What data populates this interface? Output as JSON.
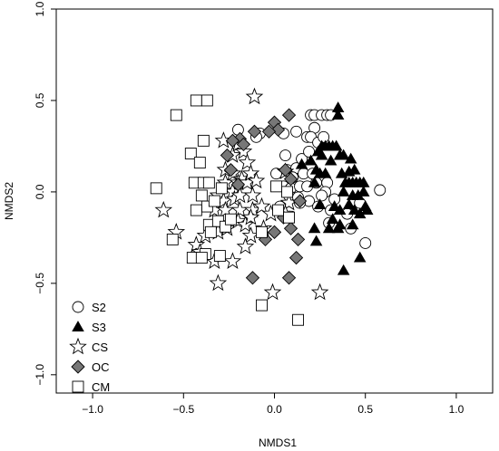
{
  "chart_data": {
    "type": "scatter",
    "title": "",
    "xlabel": "NMDS1",
    "ylabel": "NMDS2",
    "xlim": [
      -1.2,
      1.2
    ],
    "ylim": [
      -1.1,
      1.0
    ],
    "x_ticks": [
      -1.0,
      -0.5,
      0.0,
      0.5,
      1.0
    ],
    "y_ticks": [
      -1.0,
      -0.5,
      0.0,
      0.5,
      1.0
    ],
    "x_tick_labels": [
      "−1.0",
      "−0.5",
      "0.0",
      "0.5",
      "1.0"
    ],
    "y_tick_labels": [
      "−1.0",
      "−0.5",
      "0.0",
      "0.5",
      "1.0"
    ],
    "grid": false,
    "legend_position": "bottom-left",
    "series": [
      {
        "name": "S2",
        "marker": "circle-open",
        "color": "#000000",
        "points": [
          [
            0.2,
            0.42
          ],
          [
            0.22,
            0.42
          ],
          [
            0.26,
            0.42
          ],
          [
            0.29,
            0.42
          ],
          [
            0.31,
            0.42
          ],
          [
            0.22,
            0.35
          ],
          [
            0.12,
            0.33
          ],
          [
            0.18,
            0.3
          ],
          [
            0.2,
            0.3
          ],
          [
            0.24,
            0.27
          ],
          [
            0.27,
            0.3
          ],
          [
            0.05,
            0.32
          ],
          [
            -0.08,
            0.32
          ],
          [
            -0.2,
            0.34
          ],
          [
            -0.1,
            0.3
          ],
          [
            0.06,
            0.2
          ],
          [
            0.15,
            0.18
          ],
          [
            0.19,
            0.22
          ],
          [
            0.07,
            0.12
          ],
          [
            0.12,
            0.13
          ],
          [
            0.16,
            0.1
          ],
          [
            0.1,
            0.08
          ],
          [
            0.01,
            0.1
          ],
          [
            0.05,
            0.03
          ],
          [
            0.09,
            0.02
          ],
          [
            0.14,
            0.03
          ],
          [
            0.18,
            0.03
          ],
          [
            0.23,
            0.05
          ],
          [
            0.29,
            0.05
          ],
          [
            0.28,
            0.0
          ],
          [
            0.08,
            -0.02
          ],
          [
            0.13,
            -0.03
          ],
          [
            0.19,
            -0.05
          ],
          [
            0.26,
            -0.02
          ],
          [
            0.33,
            -0.04
          ],
          [
            0.21,
            0.1
          ],
          [
            0.03,
            -0.08
          ],
          [
            0.14,
            -0.06
          ],
          [
            0.24,
            -0.08
          ],
          [
            0.31,
            -0.1
          ],
          [
            0.3,
            -0.17
          ],
          [
            0.4,
            -0.12
          ],
          [
            0.42,
            -0.2
          ],
          [
            0.47,
            -0.06
          ],
          [
            0.58,
            0.01
          ],
          [
            0.5,
            -0.28
          ]
        ]
      },
      {
        "name": "S3",
        "marker": "triangle-filled",
        "color": "#000000",
        "points": [
          [
            0.35,
            0.46
          ],
          [
            0.35,
            0.42
          ],
          [
            0.15,
            0.15
          ],
          [
            0.2,
            0.17
          ],
          [
            0.24,
            0.22
          ],
          [
            0.26,
            0.25
          ],
          [
            0.28,
            0.25
          ],
          [
            0.3,
            0.25
          ],
          [
            0.32,
            0.25
          ],
          [
            0.34,
            0.25
          ],
          [
            0.23,
            0.12
          ],
          [
            0.25,
            0.1
          ],
          [
            0.28,
            0.1
          ],
          [
            0.22,
            0.05
          ],
          [
            0.26,
            0.2
          ],
          [
            0.31,
            0.17
          ],
          [
            0.36,
            0.2
          ],
          [
            0.38,
            0.2
          ],
          [
            0.42,
            0.18
          ],
          [
            0.37,
            0.1
          ],
          [
            0.41,
            0.11
          ],
          [
            0.44,
            0.12
          ],
          [
            0.39,
            0.05
          ],
          [
            0.41,
            0.05
          ],
          [
            0.43,
            0.05
          ],
          [
            0.45,
            0.05
          ],
          [
            0.47,
            0.05
          ],
          [
            0.49,
            0.05
          ],
          [
            0.38,
            0.0
          ],
          [
            0.43,
            -0.02
          ],
          [
            0.46,
            -0.02
          ],
          [
            0.49,
            0.0
          ],
          [
            0.25,
            -0.07
          ],
          [
            0.33,
            -0.08
          ],
          [
            0.36,
            -0.1
          ],
          [
            0.41,
            -0.07
          ],
          [
            0.44,
            -0.1
          ],
          [
            0.32,
            -0.15
          ],
          [
            0.36,
            -0.18
          ],
          [
            0.43,
            -0.18
          ],
          [
            0.47,
            -0.12
          ],
          [
            0.51,
            -0.1
          ],
          [
            0.22,
            -0.2
          ],
          [
            0.3,
            -0.2
          ],
          [
            0.35,
            -0.2
          ],
          [
            0.23,
            -0.27
          ],
          [
            0.47,
            -0.36
          ],
          [
            0.38,
            -0.43
          ],
          [
            0.5,
            -0.08
          ]
        ]
      },
      {
        "name": "CS",
        "marker": "star-open",
        "color": "#000000",
        "points": [
          [
            -0.11,
            0.52
          ],
          [
            -0.28,
            0.28
          ],
          [
            -0.23,
            0.2
          ],
          [
            -0.2,
            0.26
          ],
          [
            -0.17,
            0.22
          ],
          [
            -0.15,
            0.16
          ],
          [
            -0.27,
            0.12
          ],
          [
            -0.23,
            0.1
          ],
          [
            -0.18,
            0.07
          ],
          [
            -0.27,
            0.05
          ],
          [
            -0.2,
            0.05
          ],
          [
            -0.15,
            0.05
          ],
          [
            -0.13,
            0.1
          ],
          [
            -0.23,
            0.0
          ],
          [
            -0.31,
            -0.02
          ],
          [
            -0.28,
            -0.05
          ],
          [
            -0.22,
            -0.04
          ],
          [
            -0.19,
            -0.02
          ],
          [
            -0.12,
            -0.02
          ],
          [
            -0.1,
            0.06
          ],
          [
            -0.33,
            -0.1
          ],
          [
            -0.27,
            -0.1
          ],
          [
            -0.19,
            -0.1
          ],
          [
            -0.12,
            -0.1
          ],
          [
            -0.32,
            -0.17
          ],
          [
            -0.26,
            -0.2
          ],
          [
            -0.2,
            -0.16
          ],
          [
            -0.16,
            -0.18
          ],
          [
            -0.13,
            -0.14
          ],
          [
            -0.07,
            -0.08
          ],
          [
            -0.13,
            -0.24
          ],
          [
            -0.06,
            -0.2
          ],
          [
            -0.02,
            -0.12
          ],
          [
            -0.38,
            -0.24
          ],
          [
            -0.31,
            -0.22
          ],
          [
            -0.61,
            -0.1
          ],
          [
            -0.54,
            -0.22
          ],
          [
            -0.43,
            -0.29
          ],
          [
            -0.41,
            -0.33
          ],
          [
            -0.33,
            -0.38
          ],
          [
            -0.23,
            -0.38
          ],
          [
            -0.16,
            -0.3
          ],
          [
            -0.31,
            -0.5
          ],
          [
            -0.01,
            -0.55
          ],
          [
            0.25,
            -0.55
          ],
          [
            0.06,
            0.11
          ],
          [
            0.08,
            -0.06
          ],
          [
            0.06,
            -0.12
          ]
        ]
      },
      {
        "name": "OC",
        "marker": "diamond-filled",
        "color": "#777777",
        "points": [
          [
            0.08,
            0.42
          ],
          [
            0.0,
            0.38
          ],
          [
            0.02,
            0.34
          ],
          [
            -0.03,
            0.33
          ],
          [
            -0.11,
            0.33
          ],
          [
            -0.19,
            0.29
          ],
          [
            -0.17,
            0.26
          ],
          [
            -0.23,
            0.28
          ],
          [
            -0.26,
            0.2
          ],
          [
            -0.24,
            0.12
          ],
          [
            -0.2,
            0.04
          ],
          [
            0.06,
            0.12
          ],
          [
            0.09,
            0.07
          ],
          [
            0.14,
            -0.05
          ],
          [
            0.05,
            -0.14
          ],
          [
            0.09,
            -0.2
          ],
          [
            0.13,
            -0.26
          ],
          [
            0.0,
            -0.22
          ],
          [
            -0.05,
            -0.26
          ],
          [
            0.12,
            -0.36
          ],
          [
            0.08,
            -0.47
          ],
          [
            -0.12,
            -0.47
          ]
        ]
      },
      {
        "name": "CM",
        "marker": "square-open",
        "color": "#000000",
        "points": [
          [
            -0.54,
            0.42
          ],
          [
            -0.43,
            0.5
          ],
          [
            -0.37,
            0.5
          ],
          [
            -0.39,
            0.28
          ],
          [
            -0.46,
            0.21
          ],
          [
            -0.41,
            0.16
          ],
          [
            -0.44,
            0.05
          ],
          [
            -0.39,
            0.05
          ],
          [
            -0.36,
            0.05
          ],
          [
            -0.29,
            0.02
          ],
          [
            -0.4,
            -0.02
          ],
          [
            -0.37,
            -0.08
          ],
          [
            -0.33,
            -0.05
          ],
          [
            -0.43,
            -0.1
          ],
          [
            -0.36,
            -0.18
          ],
          [
            -0.31,
            -0.16
          ],
          [
            -0.35,
            -0.22
          ],
          [
            -0.27,
            -0.19
          ],
          [
            -0.24,
            -0.15
          ],
          [
            -0.38,
            -0.34
          ],
          [
            -0.45,
            -0.36
          ],
          [
            -0.4,
            -0.36
          ],
          [
            -0.3,
            -0.35
          ],
          [
            -0.56,
            -0.26
          ],
          [
            -0.65,
            0.02
          ],
          [
            0.02,
            -0.1
          ],
          [
            0.08,
            -0.14
          ],
          [
            0.07,
            0.0
          ],
          [
            0.01,
            0.03
          ],
          [
            -0.07,
            -0.22
          ],
          [
            -0.07,
            -0.62
          ],
          [
            0.13,
            -0.7
          ]
        ]
      }
    ]
  }
}
